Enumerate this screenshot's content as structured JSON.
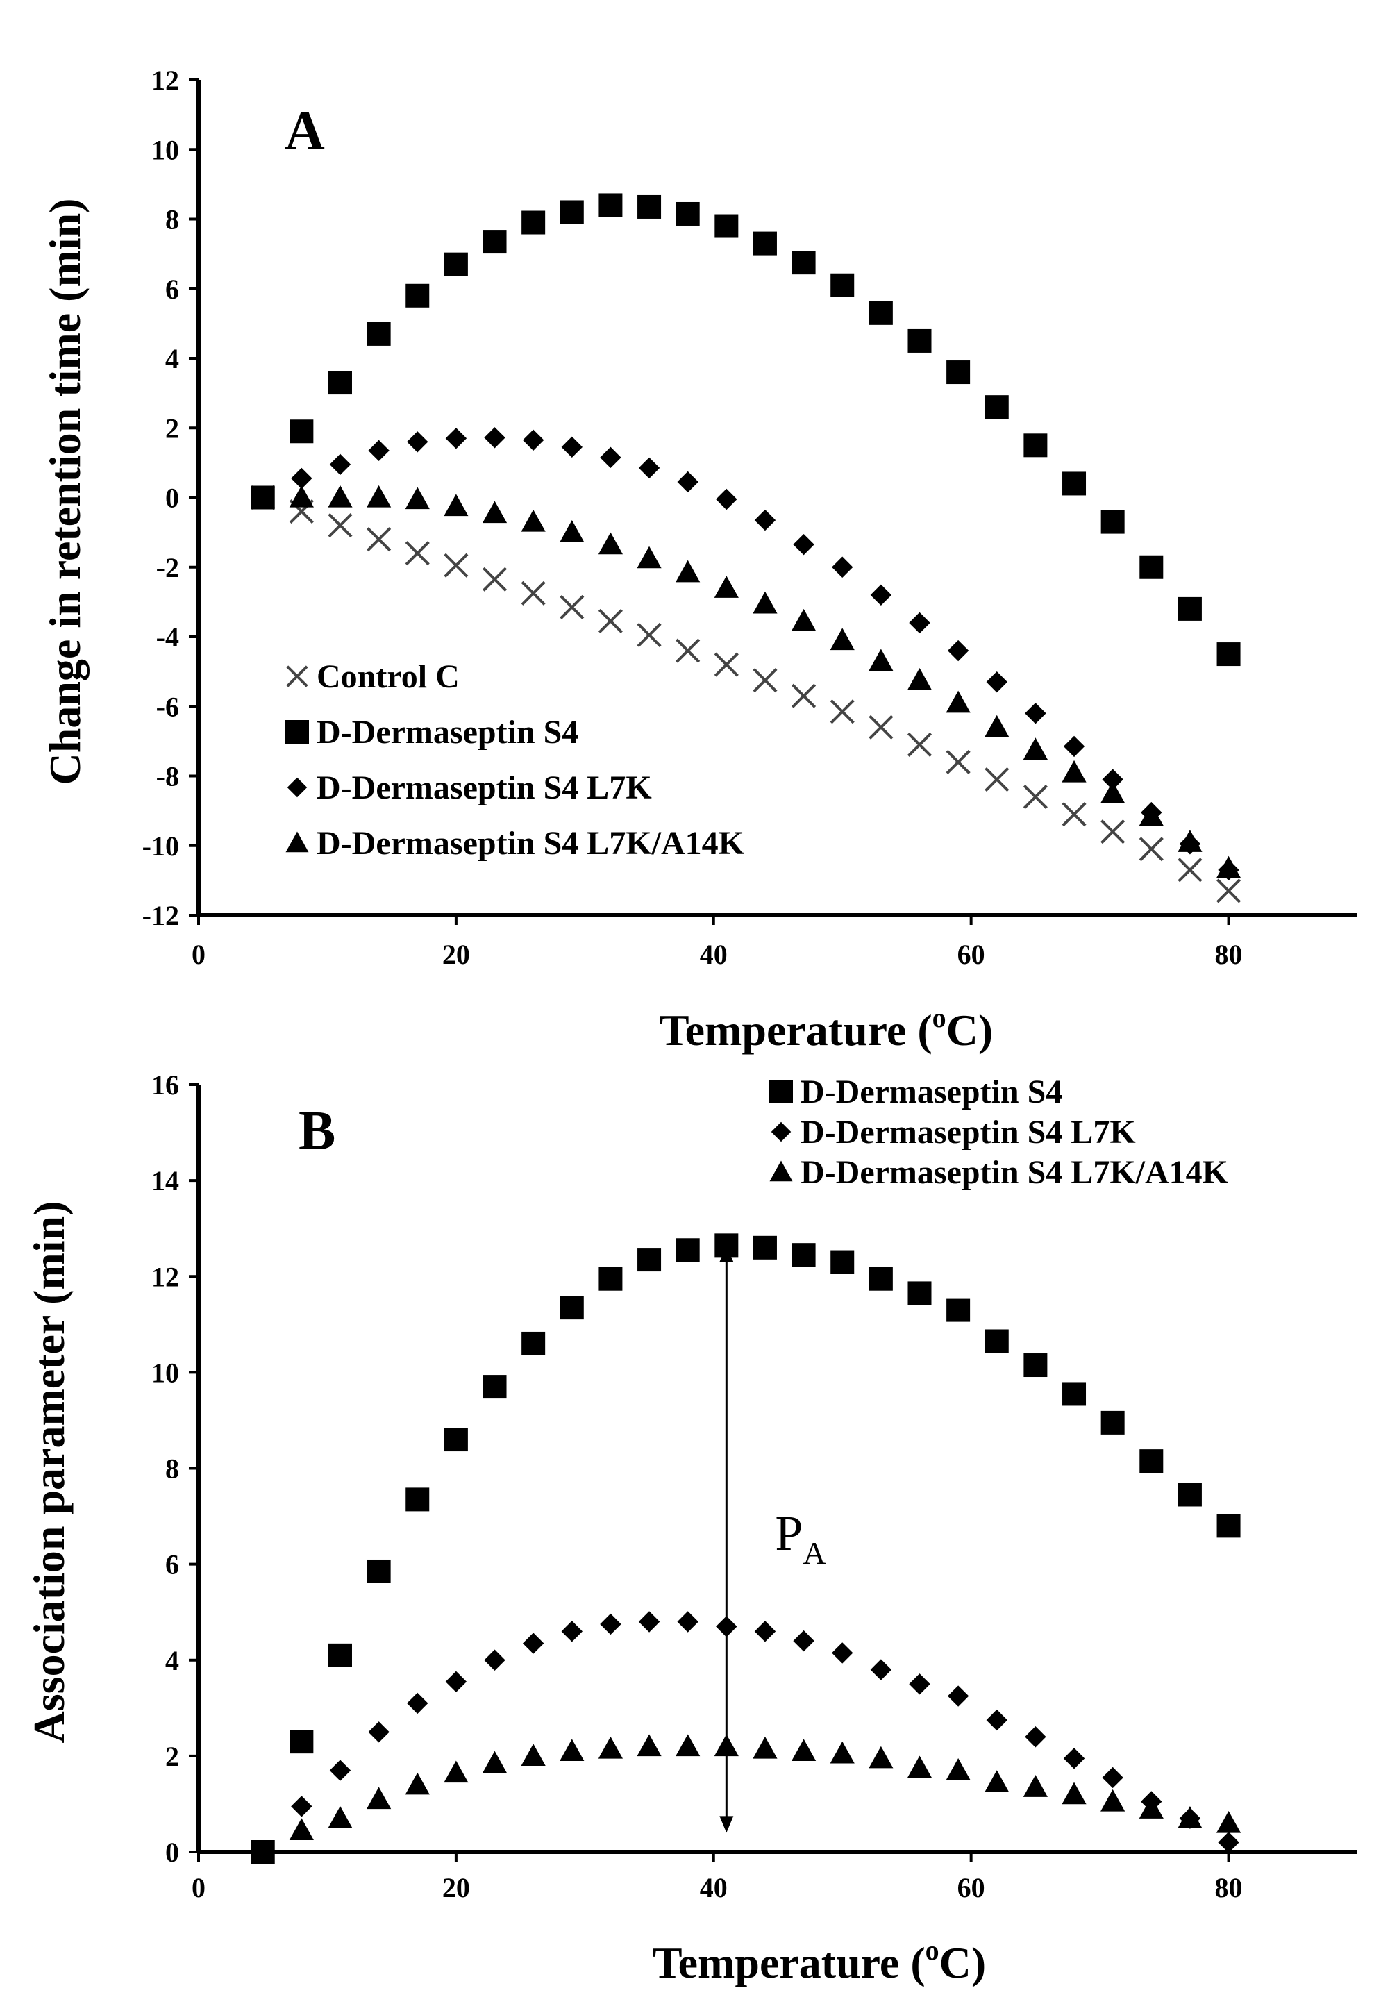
{
  "chart_data": [
    {
      "type": "scatter",
      "panel_label": "A",
      "xlabel": "Temperature (",
      "xlabel_sup": "o",
      "xlabel_tail": "C)",
      "ylabel": "Change in retention time (min)",
      "xlim": [
        0,
        90
      ],
      "ylim": [
        -12,
        12
      ],
      "xticks": [
        0,
        20,
        40,
        60,
        80
      ],
      "yticks": [
        -12,
        -10,
        -8,
        -6,
        -4,
        -2,
        0,
        2,
        4,
        6,
        8,
        10,
        12
      ],
      "legend_position": "bottom-left",
      "series": [
        {
          "name": "Control C",
          "marker": "x",
          "x": [
            5,
            8,
            11,
            14,
            17,
            20,
            23,
            26,
            29,
            32,
            35,
            38,
            41,
            44,
            47,
            50,
            53,
            56,
            59,
            62,
            65,
            68,
            71,
            74,
            77,
            80
          ],
          "y": [
            0,
            -0.4,
            -0.8,
            -1.2,
            -1.6,
            -1.95,
            -2.35,
            -2.75,
            -3.15,
            -3.55,
            -3.95,
            -4.4,
            -4.8,
            -5.25,
            -5.7,
            -6.15,
            -6.6,
            -7.1,
            -7.6,
            -8.1,
            -8.6,
            -9.1,
            -9.6,
            -10.1,
            -10.7,
            -11.3
          ]
        },
        {
          "name": "D-Dermaseptin S4",
          "marker": "square",
          "x": [
            5,
            8,
            11,
            14,
            17,
            20,
            23,
            26,
            29,
            32,
            35,
            38,
            41,
            44,
            47,
            50,
            53,
            56,
            59,
            62,
            65,
            68,
            71,
            74,
            77,
            80
          ],
          "y": [
            0,
            1.9,
            3.3,
            4.7,
            5.8,
            6.7,
            7.35,
            7.9,
            8.2,
            8.4,
            8.35,
            8.15,
            7.8,
            7.3,
            6.75,
            6.1,
            5.3,
            4.5,
            3.6,
            2.6,
            1.5,
            0.4,
            -0.7,
            -2.0,
            -3.2,
            -4.5
          ]
        },
        {
          "name": "D-Dermaseptin S4 L7K",
          "marker": "diamond",
          "x": [
            8,
            11,
            14,
            17,
            20,
            23,
            26,
            29,
            32,
            35,
            38,
            41,
            44,
            47,
            50,
            53,
            56,
            59,
            62,
            65,
            68,
            71,
            74,
            77,
            80
          ],
          "y": [
            0.55,
            0.95,
            1.35,
            1.6,
            1.7,
            1.72,
            1.65,
            1.45,
            1.15,
            0.85,
            0.45,
            -0.05,
            -0.65,
            -1.35,
            -2.0,
            -2.8,
            -3.6,
            -4.4,
            -5.3,
            -6.2,
            -7.15,
            -8.1,
            -9.05,
            -9.95,
            -10.7
          ]
        },
        {
          "name": "D-Dermaseptin S4 L7K/A14K",
          "marker": "triangle",
          "x": [
            8,
            11,
            14,
            17,
            20,
            23,
            26,
            29,
            32,
            35,
            38,
            41,
            44,
            47,
            50,
            53,
            56,
            59,
            62,
            65,
            68,
            71,
            74,
            77,
            80
          ],
          "y": [
            0,
            0,
            0,
            -0.05,
            -0.25,
            -0.45,
            -0.7,
            -1.0,
            -1.35,
            -1.75,
            -2.15,
            -2.6,
            -3.05,
            -3.55,
            -4.1,
            -4.7,
            -5.25,
            -5.9,
            -6.6,
            -7.25,
            -7.9,
            -8.5,
            -9.15,
            -9.9,
            -10.65
          ]
        }
      ]
    },
    {
      "type": "scatter",
      "panel_label": "B",
      "xlabel": "Temperature (",
      "xlabel_sup": "o",
      "xlabel_tail": "C)",
      "ylabel": "Association parameter (min)",
      "xlim": [
        0,
        90
      ],
      "ylim": [
        0,
        16
      ],
      "xticks": [
        0,
        20,
        40,
        60,
        80
      ],
      "yticks": [
        0,
        2,
        4,
        6,
        8,
        10,
        12,
        14,
        16
      ],
      "legend_position": "top-right",
      "annotation": {
        "text": "P",
        "subscript": "A",
        "arrow_x": 41,
        "arrow_from": 0.4,
        "arrow_to": 12.65
      },
      "series": [
        {
          "name": "D-Dermaseptin S4",
          "marker": "square",
          "x": [
            5,
            8,
            11,
            14,
            17,
            20,
            23,
            26,
            29,
            32,
            35,
            38,
            41,
            44,
            47,
            50,
            53,
            56,
            59,
            62,
            65,
            68,
            71,
            74,
            77,
            80
          ],
          "y": [
            0,
            2.3,
            4.1,
            5.85,
            7.35,
            8.6,
            9.7,
            10.6,
            11.35,
            11.95,
            12.35,
            12.55,
            12.65,
            12.6,
            12.45,
            12.3,
            11.95,
            11.65,
            11.3,
            10.65,
            10.15,
            9.55,
            8.95,
            8.15,
            7.45,
            6.8
          ]
        },
        {
          "name": "D-Dermaseptin S4 L7K",
          "marker": "diamond",
          "x": [
            8,
            11,
            14,
            17,
            20,
            23,
            26,
            29,
            32,
            35,
            38,
            41,
            44,
            47,
            50,
            53,
            56,
            59,
            62,
            65,
            68,
            71,
            74,
            77,
            80
          ],
          "y": [
            0.95,
            1.7,
            2.5,
            3.1,
            3.55,
            4.0,
            4.35,
            4.6,
            4.75,
            4.8,
            4.8,
            4.7,
            4.6,
            4.4,
            4.15,
            3.8,
            3.5,
            3.25,
            2.75,
            2.4,
            1.95,
            1.55,
            1.05,
            0.7,
            0.2
          ]
        },
        {
          "name": "D-Dermaseptin S4 L7K/A14K",
          "marker": "triangle",
          "x": [
            8,
            11,
            14,
            17,
            20,
            23,
            26,
            29,
            32,
            35,
            38,
            41,
            44,
            47,
            50,
            53,
            56,
            59,
            62,
            65,
            68,
            71,
            74,
            77,
            80
          ],
          "y": [
            0.45,
            0.7,
            1.1,
            1.4,
            1.65,
            1.85,
            2.0,
            2.1,
            2.15,
            2.2,
            2.2,
            2.2,
            2.15,
            2.1,
            2.05,
            1.95,
            1.75,
            1.7,
            1.45,
            1.35,
            1.2,
            1.05,
            0.9,
            0.7,
            0.6
          ]
        }
      ]
    }
  ]
}
